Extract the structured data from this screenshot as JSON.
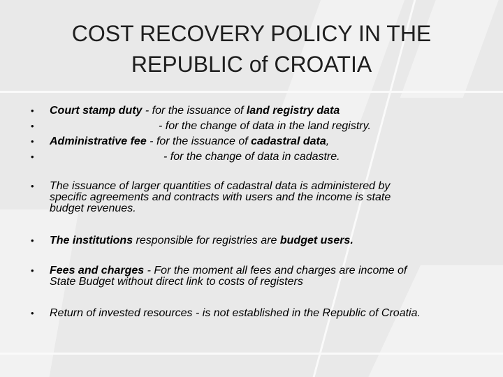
{
  "slide": {
    "title_line1": "COST RECOVERY POLICY IN THE",
    "title_line2": "REPUBLIC of CROATIA",
    "bullet_char": "•",
    "items": {
      "court_a": "Court stamp duty",
      "court_b": " - for the issuance of ",
      "court_c": "land registry data",
      "change_land": "- for the change of data in the land registry.",
      "admin_a": "Administrative fee",
      "admin_b": "  - for the issuance of ",
      "admin_c": "cadastral data",
      "admin_d": ",",
      "change_cad": "- for the change of data in cadastre.",
      "larger_1": "The issuance of larger quantities of cadastral data is administered by",
      "larger_2": "specific agreements and contracts with users and the income is state",
      "larger_3": "budget revenues.",
      "inst_a": "The institutions",
      "inst_b": " responsible for registries are ",
      "inst_c": "budget users.",
      "fees_a": "Fees and charges",
      "fees_b": " - For the moment all fees and charges are income of",
      "fees_2": "State Budget without direct link to costs of registers",
      "return": "Return of invested resources - is not established in the Republic of Croatia."
    }
  }
}
